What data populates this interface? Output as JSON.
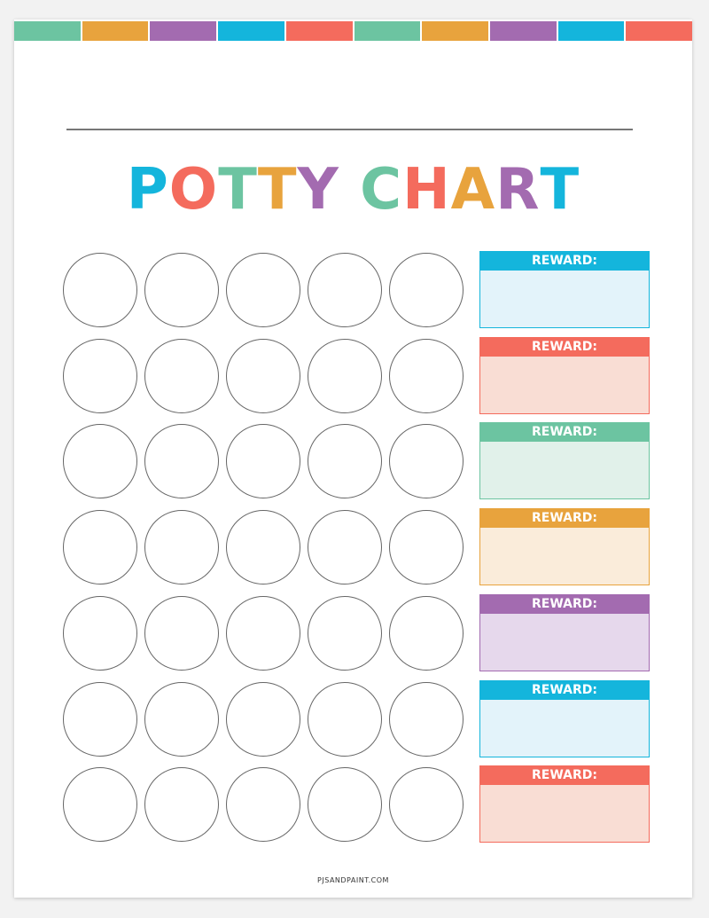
{
  "title": {
    "text": "POTTY CHART",
    "letter_colors": [
      "#14b5dc",
      "#f46b5d",
      "#6cc4a1",
      "#e8a33d",
      "#a36bb0",
      " ",
      "#6cc4a1",
      "#f46b5d",
      "#e8a33d",
      "#a36bb0",
      "#14b5dc"
    ]
  },
  "top_bar_colors": [
    "#6cc4a1",
    "#e8a33d",
    "#a36bb0",
    "#14b5dc",
    "#f46b5d",
    "#6cc4a1",
    "#e8a33d",
    "#a36bb0",
    "#14b5dc",
    "#f46b5d"
  ],
  "grid": {
    "rows": 7,
    "columns": 5
  },
  "rewards": [
    {
      "label": "REWARD:",
      "color": "#14b5dc",
      "fill": "#e3f3fa"
    },
    {
      "label": "REWARD:",
      "color": "#f46b5d",
      "fill": "#f9ddd4"
    },
    {
      "label": "REWARD:",
      "color": "#6cc4a1",
      "fill": "#e1f1ea"
    },
    {
      "label": "REWARD:",
      "color": "#e8a33d",
      "fill": "#faecda"
    },
    {
      "label": "REWARD:",
      "color": "#a36bb0",
      "fill": "#e6d8ec"
    },
    {
      "label": "REWARD:",
      "color": "#14b5dc",
      "fill": "#e3f3fa"
    },
    {
      "label": "REWARD:",
      "color": "#f46b5d",
      "fill": "#f9ddd4"
    }
  ],
  "footer": "PJSANDPAINT.COM"
}
